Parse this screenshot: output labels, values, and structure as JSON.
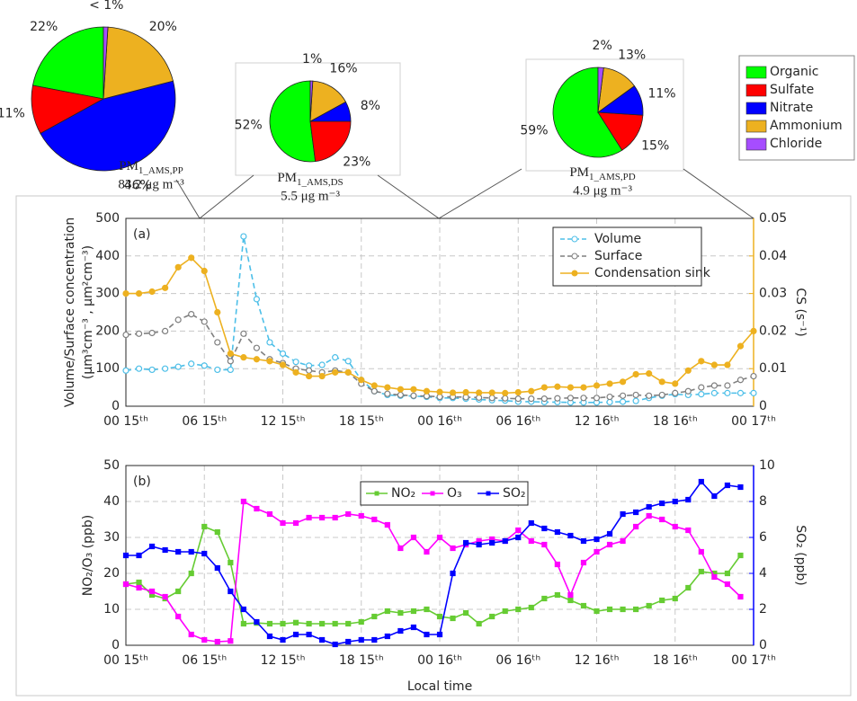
{
  "chart_data": [
    {
      "type": "pie",
      "categories": [
        "Organic",
        "Sulfate",
        "Nitrate",
        "Ammonium",
        "Chloride"
      ],
      "values": [
        22,
        11,
        46,
        20,
        1
      ],
      "value_labels": [
        "22%",
        "11%",
        "46%",
        "20%",
        "< 1%"
      ],
      "colors": [
        "#00ff00",
        "#ff0000",
        "#0000ff",
        "#edb120",
        "#a64dff"
      ],
      "caption": {
        "text": "PM",
        "sub": "1_AMS,PP"
      },
      "concentration": "83.2 μg m⁻³"
    },
    {
      "type": "pie",
      "categories": [
        "Organic",
        "Sulfate",
        "Nitrate",
        "Ammonium",
        "Chloride"
      ],
      "values": [
        52,
        23,
        8,
        16,
        1
      ],
      "value_labels": [
        "52%",
        "23%",
        "8%",
        "16%",
        "1%"
      ],
      "colors": [
        "#00ff00",
        "#ff0000",
        "#0000ff",
        "#edb120",
        "#a64dff"
      ],
      "caption": {
        "text": "PM",
        "sub": "1_AMS,DS"
      },
      "concentration": "5.5 μg m⁻³"
    },
    {
      "type": "pie",
      "categories": [
        "Organic",
        "Sulfate",
        "Nitrate",
        "Ammonium",
        "Chloride"
      ],
      "values": [
        59,
        15,
        11,
        13,
        2
      ],
      "value_labels": [
        "59%",
        "15%",
        "11%",
        "13%",
        "2%"
      ],
      "colors": [
        "#00ff00",
        "#ff0000",
        "#0000ff",
        "#edb120",
        "#a64dff"
      ],
      "caption": {
        "text": "PM",
        "sub": "1_AMS,PD"
      },
      "concentration": "4.9 μg m⁻³"
    },
    {
      "type": "line",
      "annotation": "(a)",
      "ylabel": [
        "Volume/Surface concentration",
        "(μm³cm⁻³ , μm²cm⁻³)"
      ],
      "y2label": "CS (s⁻¹)",
      "grid": true,
      "legend": "upper-right",
      "xlim": [
        0,
        48
      ],
      "xticks": [
        {
          "value": 0,
          "label": "00 15ᵗʰ"
        },
        {
          "value": 6,
          "label": "06 15ᵗʰ"
        },
        {
          "value": 12,
          "label": "12 15ᵗʰ"
        },
        {
          "value": 18,
          "label": "18 15ᵗʰ"
        },
        {
          "value": 24,
          "label": "00 16ᵗʰ"
        },
        {
          "value": 30,
          "label": "06 16ᵗʰ"
        },
        {
          "value": 36,
          "label": "12 16ᵗʰ"
        },
        {
          "value": 42,
          "label": "18 16ᵗʰ"
        },
        {
          "value": 48,
          "label": "00 17ᵗʰ"
        }
      ],
      "ylim": [
        0,
        500
      ],
      "yticks": [
        0,
        100,
        200,
        300,
        400,
        500
      ],
      "y2lim": [
        0,
        0.05
      ],
      "y2ticks": [
        0,
        0.01,
        0.02,
        0.03,
        0.04,
        0.05
      ],
      "y2color": "#edb120",
      "x": [
        0,
        1,
        2,
        3,
        4,
        5,
        6,
        7,
        8,
        9,
        10,
        11,
        12,
        13,
        14,
        15,
        16,
        17,
        18,
        19,
        20,
        21,
        22,
        23,
        24,
        25,
        26,
        27,
        28,
        29,
        30,
        31,
        32,
        33,
        34,
        35,
        36,
        37,
        38,
        39,
        40,
        41,
        42,
        43,
        44,
        45,
        46,
        47,
        48
      ],
      "series": [
        {
          "name": "Volume",
          "color": "#4dbfe8",
          "linestyle": "dashed",
          "marker": "circle",
          "values": [
            95,
            100,
            97,
            100,
            105,
            113,
            108,
            97,
            97,
            452,
            285,
            170,
            140,
            118,
            108,
            110,
            130,
            120,
            70,
            40,
            30,
            28,
            27,
            25,
            22,
            22,
            20,
            18,
            16,
            15,
            12,
            12,
            11,
            11,
            10,
            10,
            10,
            11,
            12,
            14,
            22,
            28,
            32,
            30,
            32,
            35,
            35,
            35,
            35
          ]
        },
        {
          "name": "Surface",
          "color": "#7f7f7f",
          "linestyle": "dashed",
          "marker": "circle",
          "values": [
            190,
            193,
            195,
            200,
            230,
            245,
            225,
            170,
            120,
            193,
            155,
            125,
            115,
            100,
            95,
            90,
            95,
            90,
            60,
            40,
            33,
            30,
            28,
            27,
            25,
            25,
            24,
            23,
            22,
            21,
            20,
            20,
            20,
            21,
            22,
            22,
            22,
            25,
            28,
            30,
            28,
            30,
            35,
            40,
            50,
            55,
            55,
            70,
            80
          ]
        },
        {
          "name": "Condensation sink",
          "color": "#edb120",
          "linestyle": "solid",
          "marker": "circle",
          "axis": "y2",
          "values": [
            0.03,
            0.03,
            0.0305,
            0.0315,
            0.037,
            0.0395,
            0.036,
            0.025,
            0.014,
            0.013,
            0.0125,
            0.012,
            0.011,
            0.009,
            0.008,
            0.008,
            0.009,
            0.009,
            0.007,
            0.0055,
            0.005,
            0.0045,
            0.0045,
            0.004,
            0.0038,
            0.0036,
            0.0037,
            0.0036,
            0.0036,
            0.0035,
            0.0037,
            0.004,
            0.005,
            0.0052,
            0.005,
            0.005,
            0.0055,
            0.006,
            0.0065,
            0.0085,
            0.0087,
            0.0065,
            0.006,
            0.0095,
            0.012,
            0.011,
            0.011,
            0.016,
            0.02
          ]
        }
      ]
    },
    {
      "type": "line",
      "annotation": "(b)",
      "ylabel": [
        "NO₂/O₃ (ppb)"
      ],
      "y2label": "SO₂ (ppb)",
      "xlabel": "Local time",
      "grid": true,
      "legend": "upper-center",
      "xlim": [
        0,
        48
      ],
      "xticks": [
        {
          "value": 0,
          "label": "00 15ᵗʰ"
        },
        {
          "value": 6,
          "label": "06 15ᵗʰ"
        },
        {
          "value": 12,
          "label": "12 15ᵗʰ"
        },
        {
          "value": 18,
          "label": "18 15ᵗʰ"
        },
        {
          "value": 24,
          "label": "00 16ᵗʰ"
        },
        {
          "value": 30,
          "label": "06 16ᵗʰ"
        },
        {
          "value": 36,
          "label": "12 16ᵗʰ"
        },
        {
          "value": 42,
          "label": "18 16ᵗʰ"
        },
        {
          "value": 48,
          "label": "00 17ᵗʰ"
        }
      ],
      "ylim": [
        0,
        50
      ],
      "yticks": [
        0,
        10,
        20,
        30,
        40,
        50
      ],
      "y2lim": [
        0,
        10
      ],
      "y2ticks": [
        0,
        2,
        4,
        6,
        8,
        10
      ],
      "y2color": "#0000ff",
      "x": [
        0,
        1,
        2,
        3,
        4,
        5,
        6,
        7,
        8,
        9,
        10,
        11,
        12,
        13,
        14,
        15,
        16,
        17,
        18,
        19,
        20,
        21,
        22,
        23,
        24,
        25,
        26,
        27,
        28,
        29,
        30,
        31,
        32,
        33,
        34,
        35,
        36,
        37,
        38,
        39,
        40,
        41,
        42,
        43,
        44,
        45,
        46,
        47
      ],
      "series": [
        {
          "name": "NO₂",
          "color": "#66cc33",
          "linestyle": "solid",
          "marker": "square",
          "values": [
            17,
            17.5,
            14,
            13,
            15,
            20,
            33,
            31.5,
            23,
            6,
            6.2,
            6,
            6,
            6.3,
            6,
            6,
            6,
            6,
            6.5,
            8,
            9.5,
            9,
            9.5,
            10,
            8,
            7.5,
            9,
            6,
            8,
            9.5,
            10,
            10.5,
            13,
            14,
            12.5,
            11,
            9.5,
            10,
            10,
            10,
            11,
            12.5,
            13,
            16,
            20.5,
            20,
            20,
            25
          ]
        },
        {
          "name": "O₃",
          "color": "#ff00ff",
          "linestyle": "solid",
          "marker": "square",
          "values": [
            17,
            16,
            15,
            13.5,
            8,
            3,
            1.5,
            1,
            1.2,
            40,
            38,
            36.5,
            34,
            34,
            35.5,
            35.5,
            35.5,
            36.5,
            36,
            35,
            33.5,
            27,
            30,
            26,
            30,
            27,
            28,
            29,
            29.5,
            29,
            32,
            29,
            28,
            22.5,
            14,
            23,
            26,
            28,
            29,
            33,
            36,
            35,
            33,
            32,
            26,
            19,
            17,
            13.5
          ]
        },
        {
          "name": "SO₂",
          "color": "#0000ff",
          "linestyle": "solid",
          "marker": "square",
          "axis": "y2",
          "values": [
            5,
            5,
            5.5,
            5.3,
            5.2,
            5.2,
            5.1,
            4.3,
            3,
            2,
            1.3,
            0.5,
            0.3,
            0.6,
            0.6,
            0.3,
            0.05,
            0.2,
            0.3,
            0.3,
            0.5,
            0.8,
            1,
            0.6,
            0.6,
            4,
            5.7,
            5.6,
            5.7,
            5.8,
            6,
            6.8,
            6.5,
            6.3,
            6.1,
            5.8,
            5.9,
            6.2,
            7.3,
            7.4,
            7.7,
            7.9,
            8,
            8.1,
            9.1,
            8.3,
            8.9,
            8.8
          ]
        }
      ]
    }
  ]
}
